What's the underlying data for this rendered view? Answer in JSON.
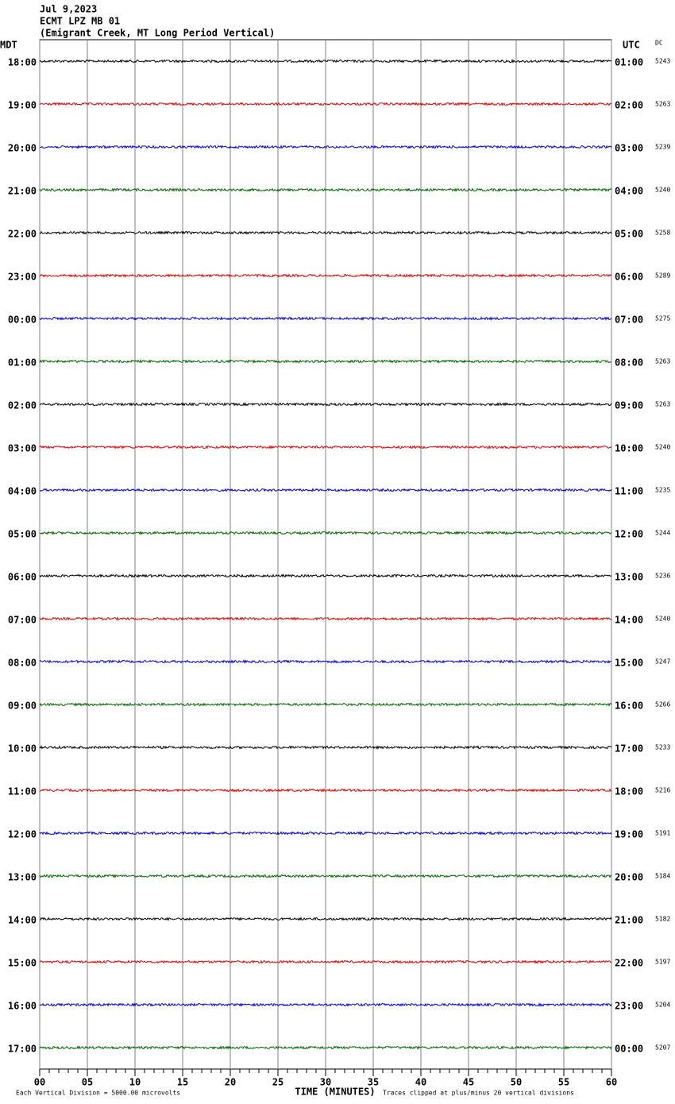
{
  "chart_data": {
    "type": "helicorder",
    "title_lines": [
      "Jul 9,2023",
      "ECMT LPZ MB 01",
      "(Emigrant Creek, MT Long Period Vertical)"
    ],
    "left_axis_label": "MDT",
    "right_axis_label": "UTC",
    "dc_label": "DC",
    "rows": [
      {
        "local": "18:00",
        "utc": "01:00",
        "dc": 5243
      },
      {
        "local": "19:00",
        "utc": "02:00",
        "dc": 5263
      },
      {
        "local": "20:00",
        "utc": "03:00",
        "dc": 5239
      },
      {
        "local": "21:00",
        "utc": "04:00",
        "dc": 5240
      },
      {
        "local": "22:00",
        "utc": "05:00",
        "dc": 5258
      },
      {
        "local": "23:00",
        "utc": "06:00",
        "dc": 5289
      },
      {
        "local": "00:00",
        "utc": "07:00",
        "dc": 5275
      },
      {
        "local": "01:00",
        "utc": "08:00",
        "dc": 5263
      },
      {
        "local": "02:00",
        "utc": "09:00",
        "dc": 5263
      },
      {
        "local": "03:00",
        "utc": "10:00",
        "dc": 5240
      },
      {
        "local": "04:00",
        "utc": "11:00",
        "dc": 5235
      },
      {
        "local": "05:00",
        "utc": "12:00",
        "dc": 5244
      },
      {
        "local": "06:00",
        "utc": "13:00",
        "dc": 5236
      },
      {
        "local": "07:00",
        "utc": "14:00",
        "dc": 5240
      },
      {
        "local": "08:00",
        "utc": "15:00",
        "dc": 5247
      },
      {
        "local": "09:00",
        "utc": "16:00",
        "dc": 5266
      },
      {
        "local": "10:00",
        "utc": "17:00",
        "dc": 5233
      },
      {
        "local": "11:00",
        "utc": "18:00",
        "dc": 5216
      },
      {
        "local": "12:00",
        "utc": "19:00",
        "dc": 5191
      },
      {
        "local": "13:00",
        "utc": "20:00",
        "dc": 5184
      },
      {
        "local": "14:00",
        "utc": "21:00",
        "dc": 5182
      },
      {
        "local": "15:00",
        "utc": "22:00",
        "dc": 5197
      },
      {
        "local": "16:00",
        "utc": "23:00",
        "dc": 5204
      },
      {
        "local": "17:00",
        "utc": "00:00",
        "dc": 5207
      }
    ],
    "xlim": [
      0,
      60
    ],
    "xticks": [
      {
        "value": 0,
        "label": "00"
      },
      {
        "value": 5,
        "label": "05"
      },
      {
        "value": 10,
        "label": "10"
      },
      {
        "value": 15,
        "label": "15"
      },
      {
        "value": 20,
        "label": "20"
      },
      {
        "value": 25,
        "label": "25"
      },
      {
        "value": 30,
        "label": "30"
      },
      {
        "value": 35,
        "label": "35"
      },
      {
        "value": 40,
        "label": "40"
      },
      {
        "value": 45,
        "label": "45"
      },
      {
        "value": 50,
        "label": "50"
      },
      {
        "value": 55,
        "label": "55"
      },
      {
        "value": 60,
        "label": "60"
      }
    ],
    "xlabel": "TIME (MINUTES)",
    "footer_left": "Each Vertical Division = 5000.00 microvolts",
    "footer_right": "Traces clipped at plus/minus 20 vertical divisions",
    "trace_colors": [
      "#000000",
      "#e00000",
      "#0000d0",
      "#006400"
    ],
    "grid": true
  }
}
